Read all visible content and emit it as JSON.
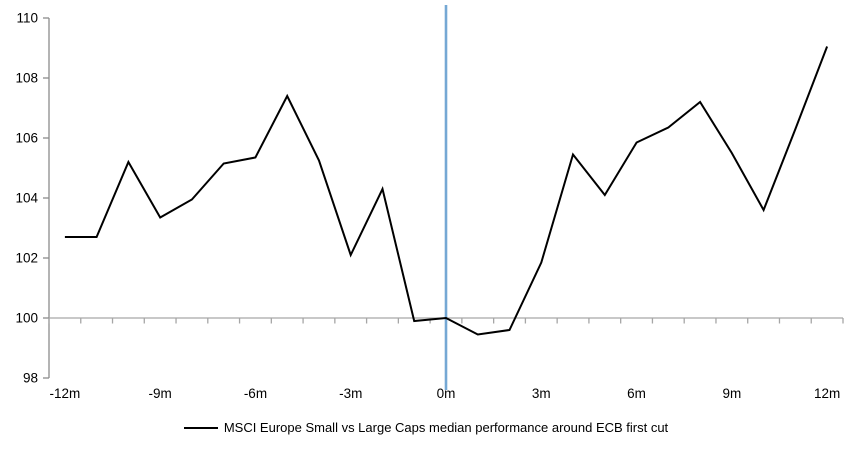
{
  "chart_data": {
    "type": "line",
    "title": "",
    "xlabel": "",
    "ylabel": "",
    "x_unit": "months relative to ECB first cut",
    "x": [
      -12,
      -11,
      -10,
      -9,
      -8,
      -7,
      -6,
      -5,
      -4,
      -3,
      -2,
      -1,
      0,
      1,
      2,
      3,
      4,
      5,
      6,
      7,
      8,
      9,
      10,
      11,
      12
    ],
    "series": [
      {
        "name": "MSCI Europe Small vs Large Caps median performance around ECB first cut",
        "color": "#000000",
        "values": [
          102.7,
          102.7,
          105.2,
          103.35,
          103.95,
          105.15,
          105.35,
          107.4,
          105.25,
          102.1,
          104.3,
          99.9,
          100.0,
          99.45,
          99.6,
          101.85,
          105.45,
          104.1,
          105.85,
          106.35,
          107.2,
          105.5,
          103.6,
          106.3,
          109.05
        ]
      }
    ],
    "xticks": [
      {
        "month": -12,
        "label": "-12m"
      },
      {
        "month": -9,
        "label": "-9m"
      },
      {
        "month": -6,
        "label": "-6m"
      },
      {
        "month": -3,
        "label": "-3m"
      },
      {
        "month": 0,
        "label": "0m"
      },
      {
        "month": 3,
        "label": "3m"
      },
      {
        "month": 6,
        "label": "6m"
      },
      {
        "month": 9,
        "label": "9m"
      },
      {
        "month": 12,
        "label": "12m"
      }
    ],
    "yticks": [
      98,
      100,
      102,
      104,
      106,
      108,
      110
    ],
    "ylim": [
      98,
      110
    ],
    "axis_crosses_at": 100,
    "event_line": {
      "x_month": 0,
      "color": "#75a8d4"
    },
    "axis_color": "#8c8c8c",
    "baseline_100_color": "#a6a6a6",
    "grid": "off",
    "legend_position": "bottom-center"
  }
}
